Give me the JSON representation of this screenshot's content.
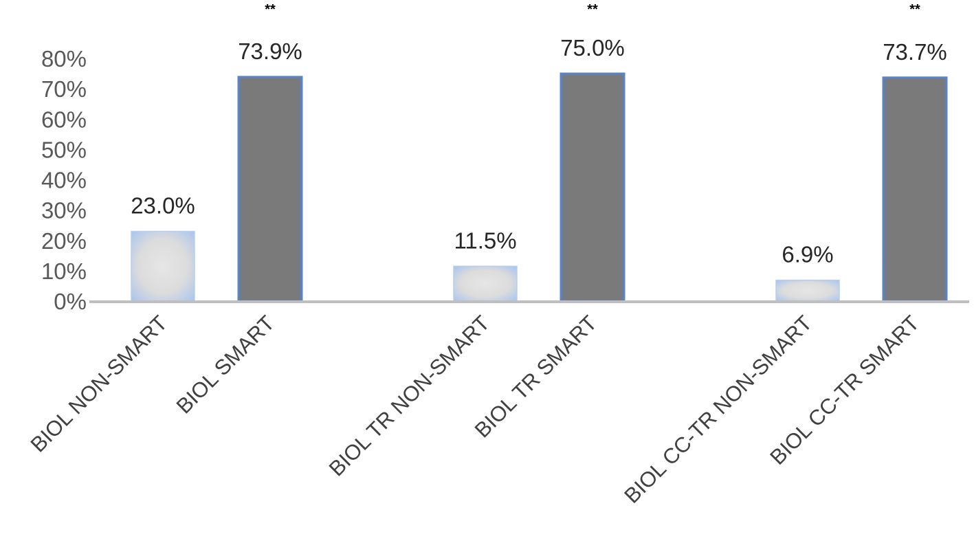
{
  "chart_data": {
    "type": "bar",
    "title": "",
    "xlabel": "",
    "ylabel": "",
    "categories": [
      "BIOL NON-SMART",
      "BIOL SMART",
      "BIOL TR NON-SMART",
      "BIOL TR SMART",
      "BIOL CC-TR NON-SMART",
      "BIOL CC-TR SMART"
    ],
    "values": [
      23.0,
      73.9,
      11.5,
      75.0,
      6.9,
      73.7
    ],
    "data_labels": [
      "23.0%",
      "73.9%",
      "11.5%",
      "75.0%",
      "6.9%",
      "73.7%"
    ],
    "significance": [
      "",
      "**",
      "",
      "**",
      "",
      "**"
    ],
    "y_ticks": [
      "0%",
      "10%",
      "20%",
      "30%",
      "40%",
      "50%",
      "60%",
      "70%",
      "80%"
    ],
    "y_tick_values": [
      0,
      10,
      20,
      30,
      40,
      50,
      60,
      70,
      80
    ],
    "ylim": [
      0,
      80
    ],
    "grid": false,
    "legend": "none",
    "bar_styles": [
      "light",
      "dark",
      "light",
      "dark",
      "light",
      "dark"
    ],
    "colors": {
      "light_fill_center": "#e4e4e4",
      "light_fill_edge": "#a9c4ee",
      "dark_fill": "#7a7a7a",
      "bar_border": "#5b84c6",
      "axis_line": "#bfbfbf"
    }
  }
}
